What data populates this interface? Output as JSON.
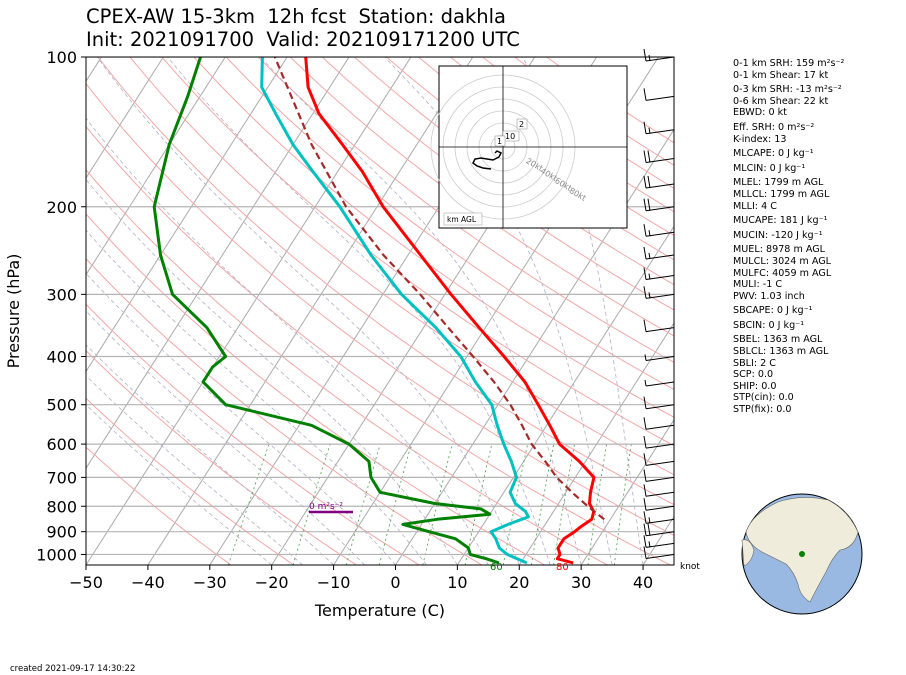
{
  "title_line1": "CPEX-AW 15-3km  12h fcst  Station: dakhla",
  "title_line2": "Init: 2021091700  Valid: 202109171200 UTC",
  "footer": "created 2021-09-17 14:30:22",
  "hodograph": {
    "label": "km AGL",
    "ring_labels": [
      "20kt",
      "40kt",
      "60kt",
      "80kt"
    ],
    "height_labels": [
      "2",
      "10",
      "1"
    ]
  },
  "indices": [
    {
      "text": "0-1 km SRH: 159 m²s⁻²"
    },
    {
      "text": "0-1 km Shear: 17 kt"
    },
    {
      "text": "0-3 km SRH: -13 m²s⁻²"
    },
    {
      "text": "0-6 km Shear: 22 kt"
    },
    {
      "text": "EBWD: 0 kt"
    },
    {
      "text": "Eff. SRH: 0 m²s⁻²"
    },
    {
      "text": "K-index: 13"
    },
    {
      "text": "MLCAPE: 0 J kg⁻¹"
    },
    {
      "text": "MLCIN: 0 J kg⁻¹"
    },
    {
      "text": "MLEL: 1799 m AGL"
    },
    {
      "text": "MLLCL: 1799 m AGL"
    },
    {
      "text": "MLLI: 4 C"
    },
    {
      "text": "MUCAPE: 181 J kg⁻¹"
    },
    {
      "text": "MUCIN: -120 J kg⁻¹"
    },
    {
      "text": "MUEL: 8978 m AGL"
    },
    {
      "text": "MULCL: 3024 m AGL"
    },
    {
      "text": "MULFC: 4059 m AGL"
    },
    {
      "text": "MULI: -1 C"
    },
    {
      "text": "PWV: 1.03 inch"
    },
    {
      "text": "SBCAPE: 0 J kg⁻¹"
    },
    {
      "text": "SBCIN: 0 J kg⁻¹"
    },
    {
      "text": "SBEL: 1363 m AGL"
    },
    {
      "text": "SBLCL: 1363 m AGL"
    },
    {
      "text": "SBLI: 2 C"
    },
    {
      "text": "SCP: 0.0"
    },
    {
      "text": "SHIP: 0.0"
    },
    {
      "text": "STP(cin): 0.0"
    },
    {
      "text": "STP(fix): 0.0"
    }
  ],
  "chart_data": {
    "type": "line",
    "xlabel": "Temperature (C)",
    "ylabel": "Pressure (hPa)",
    "xlim": [
      -50,
      45
    ],
    "ylim": [
      1050,
      100
    ],
    "y_scale": "log",
    "x_ticks": [
      -50,
      -40,
      -30,
      -20,
      -10,
      0,
      10,
      20,
      30,
      40
    ],
    "y_ticks": [
      100,
      200,
      300,
      400,
      500,
      600,
      700,
      800,
      900,
      1000
    ],
    "skew": true,
    "wind_unit_label": "knot",
    "annotations": [
      {
        "text": "0 m²s⁻²",
        "color": "#800080"
      },
      {
        "text": "60",
        "color": "#008000"
      },
      {
        "text": "80",
        "color": "#ff0000"
      }
    ],
    "series": [
      {
        "color": "#ff0000",
        "points": [
          [
            1040,
            28.5
          ],
          [
            1020,
            25.5
          ],
          [
            1000,
            25.5
          ],
          [
            970,
            24.5
          ],
          [
            930,
            24.5
          ],
          [
            900,
            25.5
          ],
          [
            880,
            26
          ],
          [
            850,
            27
          ],
          [
            820,
            26.5
          ],
          [
            790,
            25
          ],
          [
            750,
            24
          ],
          [
            700,
            23
          ],
          [
            650,
            19
          ],
          [
            600,
            14
          ],
          [
            550,
            10.5
          ],
          [
            500,
            6.5
          ],
          [
            450,
            2
          ],
          [
            400,
            -4
          ],
          [
            350,
            -11
          ],
          [
            300,
            -19
          ],
          [
            250,
            -28
          ],
          [
            200,
            -39
          ],
          [
            170,
            -46
          ],
          [
            150,
            -52
          ],
          [
            130,
            -59
          ],
          [
            115,
            -63.5
          ],
          [
            100,
            -67
          ]
        ]
      },
      {
        "color": "#00c0c0",
        "points": [
          [
            1040,
            21
          ],
          [
            1020,
            19
          ],
          [
            1000,
            17
          ],
          [
            970,
            15
          ],
          [
            930,
            13.5
          ],
          [
            900,
            12
          ],
          [
            870,
            14
          ],
          [
            840,
            16.5
          ],
          [
            820,
            15.5
          ],
          [
            790,
            13
          ],
          [
            750,
            11
          ],
          [
            700,
            10.5
          ],
          [
            650,
            8
          ],
          [
            600,
            5
          ],
          [
            550,
            2
          ],
          [
            500,
            -1
          ],
          [
            450,
            -6
          ],
          [
            400,
            -11
          ],
          [
            350,
            -18
          ],
          [
            300,
            -27
          ],
          [
            250,
            -36
          ],
          [
            200,
            -46
          ],
          [
            170,
            -54
          ],
          [
            150,
            -60
          ],
          [
            130,
            -66
          ],
          [
            115,
            -71
          ],
          [
            100,
            -74
          ]
        ]
      },
      {
        "color": "#008000",
        "points": [
          [
            1040,
            16.5
          ],
          [
            1020,
            14
          ],
          [
            1000,
            11
          ],
          [
            970,
            10
          ],
          [
            930,
            7
          ],
          [
            900,
            2
          ],
          [
            870,
            -3
          ],
          [
            850,
            2
          ],
          [
            830,
            10
          ],
          [
            810,
            8
          ],
          [
            790,
            0
          ],
          [
            750,
            -10
          ],
          [
            700,
            -13
          ],
          [
            650,
            -15
          ],
          [
            600,
            -20
          ],
          [
            550,
            -28
          ],
          [
            500,
            -44
          ],
          [
            450,
            -50
          ],
          [
            420,
            -50
          ],
          [
            400,
            -49
          ],
          [
            350,
            -55
          ],
          [
            300,
            -64
          ],
          [
            250,
            -70
          ],
          [
            200,
            -76
          ],
          [
            150,
            -80
          ],
          [
            120,
            -82
          ],
          [
            100,
            -84
          ]
        ]
      },
      {
        "color": "#a52a2a",
        "dashed": true,
        "points": [
          [
            850,
            29
          ],
          [
            800,
            25
          ],
          [
            750,
            21
          ],
          [
            700,
            17
          ],
          [
            650,
            13.5
          ],
          [
            600,
            9.5
          ],
          [
            550,
            6
          ],
          [
            500,
            2
          ],
          [
            450,
            -3
          ],
          [
            400,
            -9
          ],
          [
            350,
            -16
          ],
          [
            300,
            -24
          ],
          [
            250,
            -34
          ],
          [
            200,
            -45
          ],
          [
            150,
            -57
          ],
          [
            100,
            -72
          ]
        ]
      }
    ],
    "wind_barbs": [
      {
        "p": 100,
        "kt": 15
      },
      {
        "p": 120,
        "kt": 10
      },
      {
        "p": 140,
        "kt": 15
      },
      {
        "p": 160,
        "kt": 20
      },
      {
        "p": 180,
        "kt": 20
      },
      {
        "p": 200,
        "kt": 20
      },
      {
        "p": 225,
        "kt": 15
      },
      {
        "p": 250,
        "kt": 15
      },
      {
        "p": 275,
        "kt": 15
      },
      {
        "p": 300,
        "kt": 15
      },
      {
        "p": 350,
        "kt": 10
      },
      {
        "p": 400,
        "kt": 5
      },
      {
        "p": 450,
        "kt": 5
      },
      {
        "p": 500,
        "kt": 10
      },
      {
        "p": 550,
        "kt": 10
      },
      {
        "p": 600,
        "kt": 10
      },
      {
        "p": 650,
        "kt": 10
      },
      {
        "p": 700,
        "kt": 10
      },
      {
        "p": 750,
        "kt": 10
      },
      {
        "p": 800,
        "kt": 10
      },
      {
        "p": 850,
        "kt": 15
      },
      {
        "p": 900,
        "kt": 20
      },
      {
        "p": 950,
        "kt": 15
      },
      {
        "p": 1000,
        "kt": 10
      }
    ],
    "hodograph_points": [
      [
        0,
        0
      ],
      [
        -8,
        1
      ],
      [
        -14,
        3
      ],
      [
        -18,
        6
      ],
      [
        -16,
        10
      ],
      [
        -10,
        11
      ],
      [
        2,
        9
      ],
      [
        8,
        12
      ],
      [
        10,
        16
      ],
      [
        6,
        18
      ],
      [
        4,
        16
      ]
    ]
  }
}
